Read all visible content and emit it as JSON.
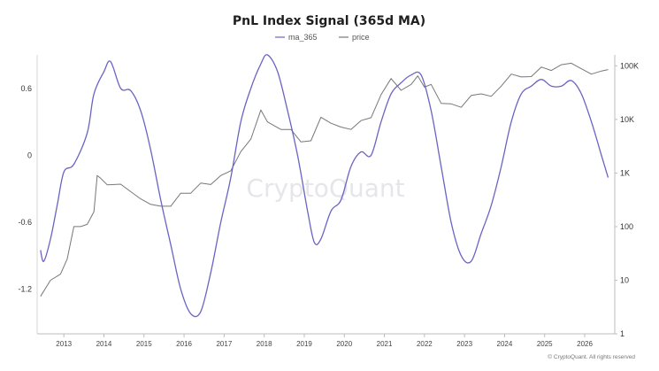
{
  "chart_data": {
    "type": "line",
    "title": "PnL Index Signal (365d MA)",
    "legend": {
      "placement": "top-center"
    },
    "watermark": "CryptoQuant",
    "copyright": "© CryptoQuant. All rights reserved",
    "grid": false,
    "x_range": [
      "2012-05-01",
      "2026-10-01"
    ],
    "x_ticks": [
      "2013",
      "2014",
      "2015",
      "2016",
      "2017",
      "2018",
      "2019",
      "2020",
      "2021",
      "2022",
      "2023",
      "2024",
      "2025",
      "2026"
    ],
    "y_left": {
      "ticks": [
        "0.6",
        "0",
        "-0.6",
        "-1.2"
      ],
      "tick_values": [
        0.6,
        0,
        -0.6,
        -1.2
      ],
      "range": [
        -1.6,
        0.9
      ]
    },
    "y_right": {
      "scale": "log",
      "ticks": [
        "100K",
        "10K",
        "1K",
        "100",
        "10",
        "1"
      ],
      "tick_values": [
        100000,
        10000,
        1000,
        100,
        10,
        1
      ],
      "range": [
        1,
        160000
      ]
    },
    "series": [
      {
        "name": "ma_365",
        "axis": "left",
        "color": "#6a63c4",
        "points": [
          [
            "2012-06",
            -0.85
          ],
          [
            "2012-07",
            -0.95
          ],
          [
            "2012-09",
            -0.75
          ],
          [
            "2012-11",
            -0.45
          ],
          [
            "2013-01",
            -0.15
          ],
          [
            "2013-04",
            -0.08
          ],
          [
            "2013-08",
            0.2
          ],
          [
            "2013-10",
            0.55
          ],
          [
            "2014-01",
            0.75
          ],
          [
            "2014-03",
            0.84
          ],
          [
            "2014-06",
            0.6
          ],
          [
            "2014-09",
            0.58
          ],
          [
            "2014-12",
            0.4
          ],
          [
            "2015-03",
            0.05
          ],
          [
            "2015-06",
            -0.4
          ],
          [
            "2015-09",
            -0.8
          ],
          [
            "2015-12",
            -1.2
          ],
          [
            "2016-03",
            -1.42
          ],
          [
            "2016-06",
            -1.4
          ],
          [
            "2016-09",
            -1.05
          ],
          [
            "2016-12",
            -0.6
          ],
          [
            "2017-03",
            -0.2
          ],
          [
            "2017-06",
            0.3
          ],
          [
            "2017-09",
            0.6
          ],
          [
            "2017-12",
            0.82
          ],
          [
            "2018-02",
            0.9
          ],
          [
            "2018-05",
            0.75
          ],
          [
            "2018-08",
            0.4
          ],
          [
            "2018-11",
            0.0
          ],
          [
            "2019-02",
            -0.5
          ],
          [
            "2019-04",
            -0.78
          ],
          [
            "2019-06",
            -0.75
          ],
          [
            "2019-09",
            -0.5
          ],
          [
            "2019-12",
            -0.4
          ],
          [
            "2020-03",
            -0.1
          ],
          [
            "2020-06",
            0.03
          ],
          [
            "2020-09",
            0.0
          ],
          [
            "2020-12",
            0.3
          ],
          [
            "2021-03",
            0.55
          ],
          [
            "2021-06",
            0.65
          ],
          [
            "2021-09",
            0.72
          ],
          [
            "2021-12",
            0.72
          ],
          [
            "2022-03",
            0.4
          ],
          [
            "2022-06",
            -0.1
          ],
          [
            "2022-09",
            -0.6
          ],
          [
            "2022-12",
            -0.9
          ],
          [
            "2023-03",
            -0.95
          ],
          [
            "2023-06",
            -0.7
          ],
          [
            "2023-09",
            -0.45
          ],
          [
            "2023-12",
            -0.1
          ],
          [
            "2024-03",
            0.3
          ],
          [
            "2024-06",
            0.55
          ],
          [
            "2024-09",
            0.62
          ],
          [
            "2024-12",
            0.68
          ],
          [
            "2025-03",
            0.62
          ],
          [
            "2025-06",
            0.62
          ],
          [
            "2025-09",
            0.67
          ],
          [
            "2025-12",
            0.55
          ],
          [
            "2026-03",
            0.3
          ],
          [
            "2026-06",
            0.0
          ],
          [
            "2026-08",
            -0.2
          ]
        ]
      },
      {
        "name": "price",
        "axis": "right",
        "color": "#777777",
        "points": [
          [
            "2012-06",
            5
          ],
          [
            "2012-09",
            10
          ],
          [
            "2012-12",
            13
          ],
          [
            "2013-02",
            25
          ],
          [
            "2013-04",
            100
          ],
          [
            "2013-06",
            100
          ],
          [
            "2013-08",
            110
          ],
          [
            "2013-10",
            190
          ],
          [
            "2013-11",
            900
          ],
          [
            "2013-12",
            800
          ],
          [
            "2014-02",
            600
          ],
          [
            "2014-06",
            620
          ],
          [
            "2014-09",
            450
          ],
          [
            "2014-12",
            330
          ],
          [
            "2015-03",
            260
          ],
          [
            "2015-06",
            240
          ],
          [
            "2015-09",
            240
          ],
          [
            "2015-12",
            420
          ],
          [
            "2016-03",
            420
          ],
          [
            "2016-06",
            650
          ],
          [
            "2016-09",
            610
          ],
          [
            "2016-12",
            900
          ],
          [
            "2017-03",
            1100
          ],
          [
            "2017-06",
            2500
          ],
          [
            "2017-09",
            4300
          ],
          [
            "2017-12",
            15000
          ],
          [
            "2018-02",
            9000
          ],
          [
            "2018-06",
            6500
          ],
          [
            "2018-09",
            6500
          ],
          [
            "2018-12",
            3800
          ],
          [
            "2019-03",
            4000
          ],
          [
            "2019-06",
            11000
          ],
          [
            "2019-09",
            8500
          ],
          [
            "2019-12",
            7200
          ],
          [
            "2020-03",
            6500
          ],
          [
            "2020-06",
            9500
          ],
          [
            "2020-09",
            10800
          ],
          [
            "2020-12",
            29000
          ],
          [
            "2021-03",
            58000
          ],
          [
            "2021-06",
            35000
          ],
          [
            "2021-09",
            45000
          ],
          [
            "2021-11",
            65000
          ],
          [
            "2022-01",
            40000
          ],
          [
            "2022-03",
            45000
          ],
          [
            "2022-06",
            20000
          ],
          [
            "2022-09",
            19500
          ],
          [
            "2022-12",
            16800
          ],
          [
            "2023-03",
            28000
          ],
          [
            "2023-06",
            30000
          ],
          [
            "2023-09",
            27000
          ],
          [
            "2023-12",
            42000
          ],
          [
            "2024-03",
            70000
          ],
          [
            "2024-06",
            62000
          ],
          [
            "2024-09",
            63000
          ],
          [
            "2024-12",
            95000
          ],
          [
            "2025-03",
            82000
          ],
          [
            "2025-06",
            105000
          ],
          [
            "2025-09",
            112000
          ],
          [
            "2025-12",
            88000
          ],
          [
            "2026-03",
            70000
          ],
          [
            "2026-06",
            80000
          ],
          [
            "2026-08",
            85000
          ]
        ]
      }
    ]
  }
}
